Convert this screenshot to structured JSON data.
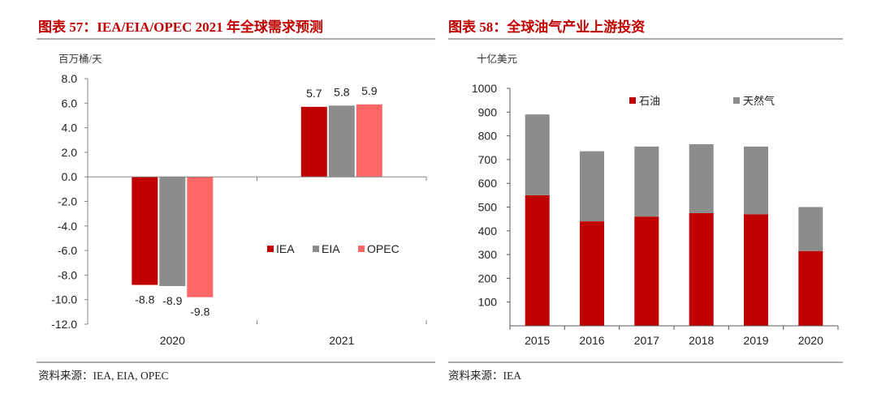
{
  "colors": {
    "caption": "#c00000"
  },
  "chart_data": [
    {
      "type": "bar",
      "title": "图表 57：IEA/EIA/OPEC 2021 年全球需求预测",
      "ylabel": "百万桶/天",
      "source": "资料来源：IEA, EIA, OPEC",
      "categories": [
        "2020",
        "2021"
      ],
      "series": [
        {
          "name": "IEA",
          "values": [
            -8.8,
            5.7
          ],
          "color": "#c00000"
        },
        {
          "name": "EIA",
          "values": [
            -8.9,
            5.8
          ],
          "color": "#8c8c8c"
        },
        {
          "name": "OPEC",
          "values": [
            -9.8,
            5.9
          ],
          "color": "#ff6666"
        }
      ],
      "ylim": [
        -12,
        8
      ],
      "yticks": [
        "8.0",
        "6.0",
        "4.0",
        "2.0",
        "0.0",
        "-2.0",
        "-4.0",
        "-6.0",
        "-8.0",
        "-10.0",
        "-12.0"
      ],
      "data_labels": true,
      "legend": "right",
      "grid": false
    },
    {
      "type": "bar",
      "stacked": true,
      "title": "图表 58：全球油气产业上游投资",
      "ylabel": "十亿美元",
      "source": "资料来源：IEA",
      "categories": [
        "2015",
        "2016",
        "2017",
        "2018",
        "2019",
        "2020"
      ],
      "series": [
        {
          "name": "石油",
          "values": [
            550,
            440,
            460,
            475,
            470,
            315
          ],
          "color": "#c00000"
        },
        {
          "name": "天然气",
          "values": [
            340,
            295,
            295,
            290,
            285,
            185
          ],
          "color": "#8c8c8c"
        }
      ],
      "ylim": [
        0,
        1000
      ],
      "yticks": [
        "1000",
        "900",
        "800",
        "700",
        "600",
        "500",
        "400",
        "300",
        "200",
        "100"
      ],
      "data_labels": false,
      "legend": "top",
      "grid": false
    }
  ]
}
